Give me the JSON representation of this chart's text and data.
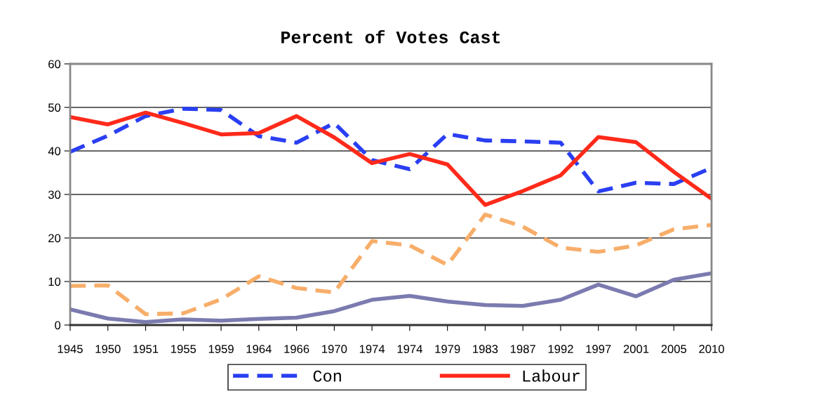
{
  "chart_data": {
    "type": "line",
    "title": "Percent of Votes Cast",
    "categories": [
      "1945",
      "1950",
      "1951",
      "1955",
      "1959",
      "1964",
      "1966",
      "1970",
      "1974",
      "1974",
      "1979",
      "1983",
      "1987",
      "1992",
      "1997",
      "2001",
      "2005",
      "2010"
    ],
    "series": [
      {
        "name": "Con",
        "color": "#2a3ff2",
        "line_style": "dashed",
        "values": [
          39.8,
          43.5,
          48.0,
          49.7,
          49.4,
          43.4,
          41.9,
          46.4,
          37.9,
          35.8,
          43.9,
          42.4,
          42.2,
          41.9,
          30.7,
          32.7,
          32.4,
          36.1
        ]
      },
      {
        "name": "Labour",
        "color": "#ff2a1a",
        "line_style": "solid",
        "values": [
          47.8,
          46.1,
          48.8,
          46.4,
          43.8,
          44.1,
          48.0,
          43.1,
          37.2,
          39.3,
          36.9,
          27.6,
          30.8,
          34.4,
          43.2,
          42.0,
          35.2,
          29.0
        ]
      },
      {
        "color": "#f7ae6a",
        "line_style": "dashed",
        "values": [
          9.0,
          9.1,
          2.5,
          2.7,
          5.9,
          11.2,
          8.5,
          7.5,
          19.3,
          18.3,
          13.8,
          25.4,
          22.6,
          17.8,
          16.8,
          18.3,
          22.0,
          23.0
        ]
      },
      {
        "color": "#7b7bb0",
        "line_style": "solid",
        "values": [
          3.6,
          1.5,
          0.7,
          1.3,
          1.0,
          1.4,
          1.7,
          3.2,
          5.8,
          6.7,
          5.4,
          4.6,
          4.4,
          5.8,
          9.3,
          6.6,
          10.4,
          11.9
        ]
      }
    ],
    "ylim": [
      0,
      60
    ],
    "yticks": [
      0,
      10,
      20,
      30,
      40,
      50,
      60
    ],
    "grid": "y",
    "legend": "bottom"
  }
}
